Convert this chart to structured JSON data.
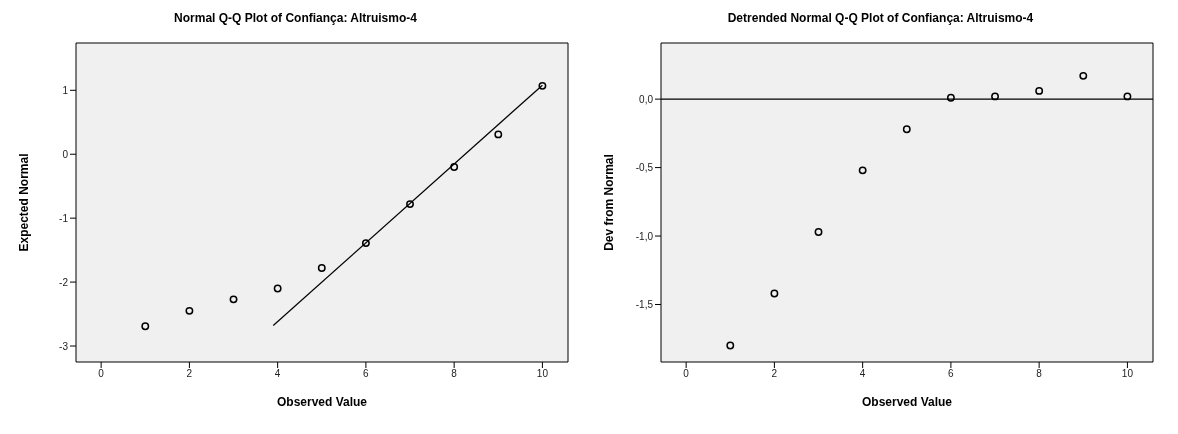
{
  "chart_data": [
    {
      "type": "scatter",
      "title": "Normal Q-Q Plot of Confiança: Altruismo-4",
      "xlabel": "Observed Value",
      "ylabel": "Expected Normal",
      "series": [
        {
          "color": "#000000",
          "marker": "circle",
          "x": [
            1,
            2,
            3,
            4,
            5,
            6,
            7,
            8,
            9,
            10
          ],
          "values": [
            -2.69,
            -2.45,
            -2.27,
            -2.1,
            -1.78,
            -1.39,
            -0.78,
            -0.2,
            0.31,
            1.07
          ]
        },
        {
          "type": "line",
          "color": "#000000",
          "marker": "none",
          "x": [
            3.9,
            10
          ],
          "values": [
            -2.68,
            1.08
          ]
        }
      ],
      "xlim": [
        -0.57,
        10.58
      ],
      "xticks": [
        0,
        2,
        4,
        6,
        8,
        10
      ],
      "ylim": [
        -3.25,
        1.74
      ],
      "yticks": [
        -3,
        -2,
        -1,
        0,
        1
      ],
      "grid": false,
      "legend": false
    },
    {
      "type": "scatter",
      "title": "Detrended Normal Q-Q Plot of Confiança: Altruismo-4",
      "xlabel": "Observed Value",
      "ylabel": "Dev from Normal",
      "series": [
        {
          "color": "#000000",
          "x": [
            1,
            2,
            3,
            4,
            5,
            6,
            7,
            8,
            9,
            10
          ],
          "values": [
            -1.8,
            -1.42,
            -0.97,
            -0.52,
            -0.22,
            0.01,
            0.02,
            0.06,
            0.17,
            0.02
          ]
        }
      ],
      "xlim": [
        -0.57,
        10.58
      ],
      "xticks": [
        0,
        2,
        4,
        6,
        8,
        10
      ],
      "ylim": [
        -1.92,
        0.41
      ],
      "yticks": [
        {
          "value": -1.5,
          "label": "-1,5"
        },
        {
          "value": -1,
          "label": "-1,0"
        },
        {
          "value": -0.5,
          "label": "-0,5"
        },
        {
          "value": 0,
          "label": "0,0"
        }
      ],
      "ref_lines": [
        {
          "axis": "y",
          "value": 0,
          "color": "#000000"
        }
      ],
      "marker": "circle",
      "grid": false,
      "legend": false
    }
  ]
}
